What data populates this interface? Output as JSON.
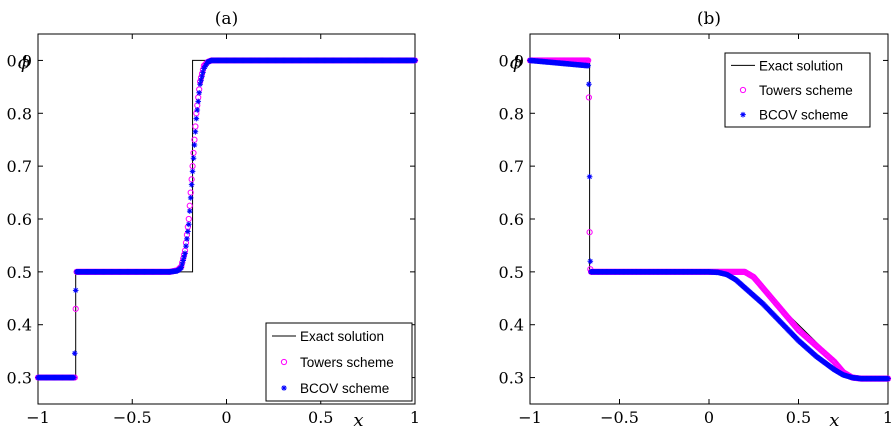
{
  "chart_data": [
    {
      "type": "line",
      "title": "(a)",
      "xlabel": "x",
      "ylabel": "ϕ",
      "xlim": [
        -1,
        1
      ],
      "ylim": [
        0.25,
        0.95
      ],
      "xticks": [
        -1,
        -0.5,
        0,
        0.5,
        1
      ],
      "xtick_labels": [
        "−1",
        "−0.5",
        "0",
        "0.5",
        "1"
      ],
      "yticks": [
        0.3,
        0.4,
        0.5,
        0.6,
        0.7,
        0.8,
        0.9
      ],
      "ytick_labels": [
        "0.3",
        "0.4",
        "0.5",
        "0.6",
        "0.7",
        "0.8",
        "0.9"
      ],
      "grid": false,
      "legend_position": "bottom-right",
      "series": [
        {
          "name": "Exact solution",
          "style": "line",
          "color": "#000000",
          "x": [
            -1,
            -0.8,
            -0.8,
            -0.18,
            -0.18,
            -0.13,
            -0.13,
            1
          ],
          "y": [
            0.3,
            0.3,
            0.5,
            0.5,
            0.9,
            0.9,
            0.9,
            0.9
          ]
        },
        {
          "name": "Towers scheme",
          "style": "circle",
          "color": "#ff00ff",
          "x": [
            -1,
            -0.81,
            -0.805,
            -0.8,
            -0.795,
            -0.79,
            -0.3,
            -0.26,
            -0.24,
            -0.22,
            -0.2,
            -0.18,
            -0.16,
            -0.14,
            -0.12,
            -0.1,
            -0.08,
            -0.06,
            1
          ],
          "y": [
            0.3,
            0.3,
            0.3,
            0.43,
            0.5,
            0.5,
            0.5,
            0.503,
            0.51,
            0.54,
            0.6,
            0.7,
            0.8,
            0.86,
            0.89,
            0.897,
            0.9,
            0.9,
            0.9
          ]
        },
        {
          "name": "BCOV scheme",
          "style": "star",
          "color": "#0000ff",
          "x": [
            -1,
            -0.81,
            -0.805,
            -0.8,
            -0.795,
            -0.79,
            -0.3,
            -0.26,
            -0.24,
            -0.22,
            -0.2,
            -0.18,
            -0.16,
            -0.14,
            -0.12,
            -0.1,
            -0.08,
            -0.06,
            1
          ],
          "y": [
            0.3,
            0.3,
            0.346,
            0.465,
            0.5,
            0.5,
            0.5,
            0.502,
            0.508,
            0.535,
            0.59,
            0.69,
            0.79,
            0.855,
            0.885,
            0.897,
            0.9,
            0.9,
            0.9
          ]
        }
      ]
    },
    {
      "type": "line",
      "title": "(b)",
      "xlabel": "x",
      "ylabel": "ϕ",
      "xlim": [
        -1,
        1
      ],
      "ylim": [
        0.25,
        0.95
      ],
      "xticks": [
        -1,
        -0.5,
        0,
        0.5,
        1
      ],
      "xtick_labels": [
        "−1",
        "−0.5",
        "0",
        "0.5",
        "1"
      ],
      "yticks": [
        0.3,
        0.4,
        0.5,
        0.6,
        0.7,
        0.8,
        0.9
      ],
      "ytick_labels": [
        "0.3",
        "0.4",
        "0.5",
        "0.6",
        "0.7",
        "0.8",
        "0.9"
      ],
      "grid": false,
      "legend_position": "top-right",
      "series": [
        {
          "name": "Exact solution",
          "style": "line",
          "color": "#000000",
          "x": [
            -1,
            -0.667,
            -0.667,
            0.2,
            0.8,
            1
          ],
          "y": [
            0.9,
            0.9,
            0.5,
            0.5,
            0.3,
            0.3
          ]
        },
        {
          "name": "Towers scheme",
          "style": "circle",
          "color": "#ff00ff",
          "x": [
            -1,
            -0.675,
            -0.671,
            -0.667,
            -0.663,
            -0.659,
            -0.655,
            0.0,
            0.05,
            0.1,
            0.15,
            0.2,
            0.25,
            0.3,
            0.4,
            0.5,
            0.6,
            0.7,
            0.75,
            0.8,
            0.85,
            0.9,
            1
          ],
          "y": [
            0.9,
            0.9,
            0.83,
            0.575,
            0.505,
            0.5,
            0.5,
            0.5,
            0.5,
            0.5,
            0.5,
            0.5,
            0.49,
            0.47,
            0.43,
            0.39,
            0.36,
            0.33,
            0.31,
            0.3,
            0.298,
            0.298,
            0.298
          ]
        },
        {
          "name": "BCOV scheme",
          "style": "star",
          "color": "#0000ff",
          "x": [
            -1,
            -0.675,
            -0.671,
            -0.667,
            -0.663,
            -0.659,
            -0.655,
            0.0,
            0.05,
            0.1,
            0.15,
            0.2,
            0.25,
            0.3,
            0.4,
            0.5,
            0.6,
            0.7,
            0.75,
            0.8,
            0.85,
            0.9,
            1
          ],
          "y": [
            0.9,
            0.89,
            0.855,
            0.68,
            0.52,
            0.5,
            0.5,
            0.5,
            0.499,
            0.495,
            0.485,
            0.47,
            0.455,
            0.44,
            0.405,
            0.37,
            0.34,
            0.315,
            0.305,
            0.3,
            0.298,
            0.298,
            0.298
          ]
        }
      ]
    }
  ]
}
